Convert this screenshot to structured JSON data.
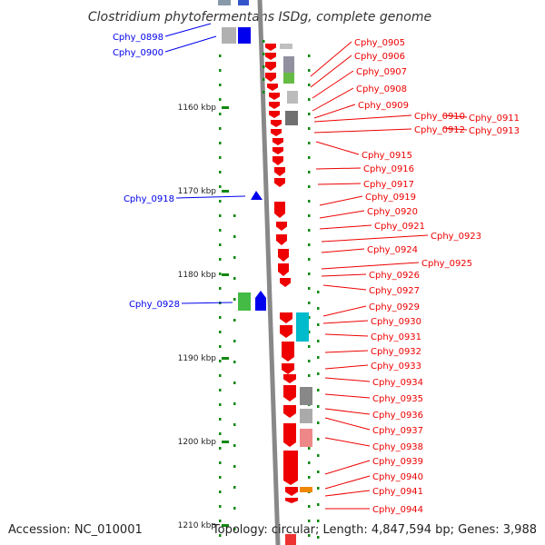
{
  "title": "Clostridium phytofermentans ISDg, complete genome",
  "footer": {
    "accession": "Accession: NC_010001",
    "topology": "Topology: circular; Length: 4,847,594 bp; Genes: 3,988"
  },
  "colors": {
    "forward_gene": "#0000ee",
    "reverse_gene": "#ee0000",
    "tick_mark": "#118811",
    "backbone": "#888888"
  },
  "scale_labels": [
    "1160 kbp",
    "1170 kbp",
    "1180 kbp",
    "1190 kbp",
    "1200 kbp",
    "1210 kbp"
  ],
  "left_genes": [
    "Cphy_0898",
    "Cphy_0900",
    "Cphy_0918",
    "Cphy_0928"
  ],
  "right_genes": [
    "Cphy_0905",
    "Cphy_0906",
    "Cphy_0907",
    "Cphy_0908",
    "Cphy_0909",
    "Cphy_0910",
    "Cphy_0911",
    "Cphy_0912",
    "Cphy_0913",
    "Cphy_0915",
    "Cphy_0916",
    "Cphy_0917",
    "Cphy_0919",
    "Cphy_0920",
    "Cphy_0921",
    "Cphy_0923",
    "Cphy_0924",
    "Cphy_0925",
    "Cphy_0926",
    "Cphy_0927",
    "Cphy_0929",
    "Cphy_0930",
    "Cphy_0931",
    "Cphy_0932",
    "Cphy_0933",
    "Cphy_0934",
    "Cphy_0935",
    "Cphy_0936",
    "Cphy_0937",
    "Cphy_0938",
    "Cphy_0939",
    "Cphy_0940",
    "Cphy_0941",
    "Cphy_0944"
  ]
}
